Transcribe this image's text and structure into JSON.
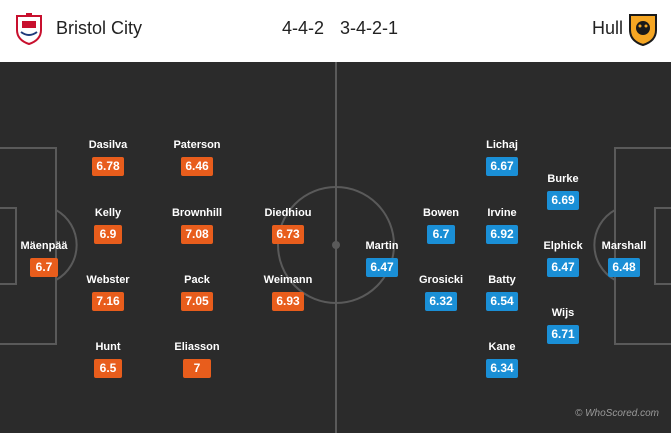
{
  "home": {
    "name": "Bristol City",
    "formation": "4-4-2",
    "crest_icon": "bristol-city-crest-icon",
    "color": "#e85d1c",
    "players": [
      {
        "name": "Mäenpää",
        "rating": "6.7"
      },
      {
        "name": "Dasilva",
        "rating": "6.78"
      },
      {
        "name": "Kelly",
        "rating": "6.9"
      },
      {
        "name": "Webster",
        "rating": "7.16"
      },
      {
        "name": "Hunt",
        "rating": "6.5"
      },
      {
        "name": "Paterson",
        "rating": "6.46"
      },
      {
        "name": "Brownhill",
        "rating": "7.08"
      },
      {
        "name": "Pack",
        "rating": "7.05"
      },
      {
        "name": "Eliasson",
        "rating": "7"
      },
      {
        "name": "Diedhiou",
        "rating": "6.73"
      },
      {
        "name": "Weimann",
        "rating": "6.93"
      }
    ]
  },
  "away": {
    "name": "Hull",
    "formation": "3-4-2-1",
    "crest_icon": "hull-city-crest-icon",
    "color": "#1a8fd6",
    "players": [
      {
        "name": "Marshall",
        "rating": "6.48"
      },
      {
        "name": "Burke",
        "rating": "6.69"
      },
      {
        "name": "Elphick",
        "rating": "6.47"
      },
      {
        "name": "Wijs",
        "rating": "6.71"
      },
      {
        "name": "Lichaj",
        "rating": "6.67"
      },
      {
        "name": "Irvine",
        "rating": "6.92"
      },
      {
        "name": "Batty",
        "rating": "6.54"
      },
      {
        "name": "Kane",
        "rating": "6.34"
      },
      {
        "name": "Bowen",
        "rating": "6.7"
      },
      {
        "name": "Grosicki",
        "rating": "6.32"
      },
      {
        "name": "Martin",
        "rating": "6.47"
      }
    ]
  },
  "credit": "© WhoScored.com"
}
